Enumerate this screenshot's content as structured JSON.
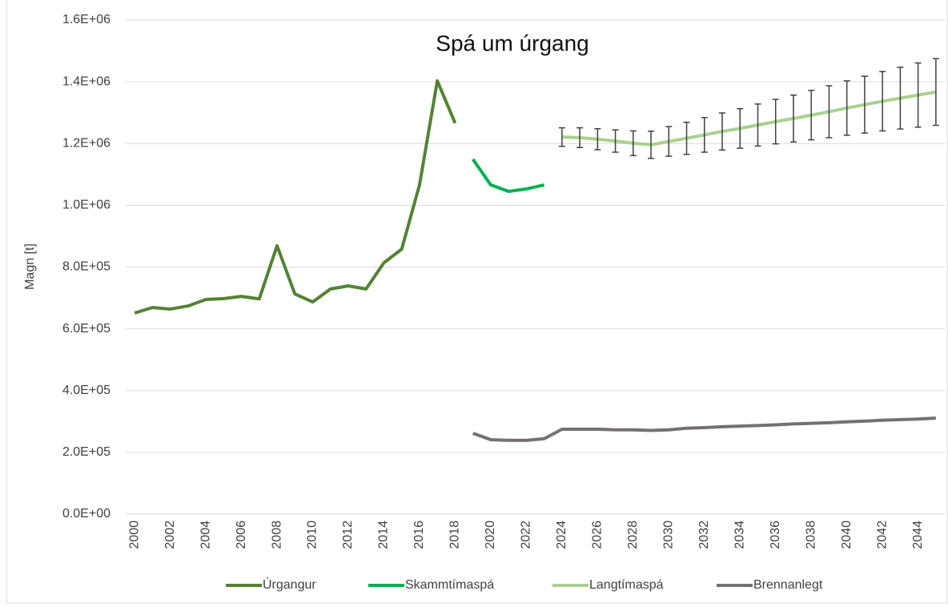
{
  "chart_data": {
    "type": "line",
    "title": "Spá um úrgang",
    "y_label": "Magn [t]",
    "categories": [
      "2000",
      null,
      "2002",
      null,
      "2004",
      null,
      "2006",
      null,
      "2008",
      null,
      "2010",
      null,
      "2012",
      null,
      "2014",
      null,
      "2016",
      null,
      "2018",
      null,
      "2020",
      null,
      "2022",
      null,
      "2024",
      null,
      "2026",
      null,
      "2028",
      null,
      "2030",
      null,
      "2032",
      null,
      "2034",
      null,
      "2036",
      null,
      "2038",
      null,
      "2040",
      null,
      "2042",
      null,
      "2044",
      null
    ],
    "series": [
      {
        "name": "Úrgangur",
        "color": "#548235",
        "values": [
          651000,
          669000,
          664000,
          674000,
          695000,
          698000,
          705000,
          697000,
          869000,
          713000,
          687000,
          729000,
          739000,
          729000,
          814000,
          858000,
          1066000,
          1403000,
          1266000,
          null,
          null,
          null,
          null,
          null,
          null,
          null,
          null,
          null,
          null,
          null,
          null,
          null,
          null,
          null,
          null,
          null,
          null,
          null,
          null,
          null,
          null,
          null,
          null,
          null,
          null,
          null
        ]
      },
      {
        "name": "Skammtímaspá",
        "color": "#00b050",
        "values": [
          null,
          null,
          null,
          null,
          null,
          null,
          null,
          null,
          null,
          null,
          null,
          null,
          null,
          null,
          null,
          null,
          null,
          null,
          null,
          1149000,
          1066000,
          1045000,
          1053000,
          1066000,
          null,
          null,
          null,
          null,
          null,
          null,
          null,
          null,
          null,
          null,
          null,
          null,
          null,
          null,
          null,
          null,
          null,
          null,
          null,
          null,
          null,
          null
        ]
      },
      {
        "name": "Langtímaspá",
        "color": "#a9d18e",
        "values": [
          null,
          null,
          null,
          null,
          null,
          null,
          null,
          null,
          null,
          null,
          null,
          null,
          null,
          null,
          null,
          null,
          null,
          null,
          null,
          null,
          null,
          null,
          null,
          null,
          1221000,
          1219000,
          1214000,
          1208000,
          1201000,
          1196000,
          1207000,
          1217000,
          1228000,
          1239000,
          1249000,
          1260000,
          1271000,
          1281000,
          1292000,
          1303000,
          1315000,
          1326000,
          1337000,
          1347000,
          1357000,
          1367000
        ],
        "errors": [
          null,
          null,
          null,
          null,
          null,
          null,
          null,
          null,
          null,
          null,
          null,
          null,
          null,
          null,
          null,
          null,
          null,
          null,
          null,
          null,
          null,
          null,
          null,
          null,
          30000,
          32000,
          34000,
          36000,
          40000,
          44000,
          48000,
          52000,
          56000,
          60000,
          64000,
          68000,
          72000,
          76000,
          80000,
          84000,
          88000,
          92000,
          96000,
          100000,
          104000,
          108000
        ]
      },
      {
        "name": "Brennanlegt",
        "color": "#767171",
        "values": [
          null,
          null,
          null,
          null,
          null,
          null,
          null,
          null,
          null,
          null,
          null,
          null,
          null,
          null,
          null,
          null,
          null,
          null,
          null,
          262000,
          241000,
          239000,
          239000,
          244000,
          275000,
          275000,
          275000,
          273000,
          273000,
          271000,
          273000,
          278000,
          280000,
          283000,
          285000,
          287000,
          289000,
          292000,
          294000,
          296000,
          299000,
          301000,
          304000,
          306000,
          308000,
          311000
        ]
      }
    ],
    "ylim": [
      0,
      1600000
    ],
    "yticks": [
      {
        "value": 0,
        "label": "0.0E+00"
      },
      {
        "value": 200000,
        "label": "2.0E+05"
      },
      {
        "value": 400000,
        "label": "4.0E+05"
      },
      {
        "value": 600000,
        "label": "6.0E+05"
      },
      {
        "value": 800000,
        "label": "8.0E+05"
      },
      {
        "value": 1000000,
        "label": "1.0E+06"
      },
      {
        "value": 1200000,
        "label": "1.2E+06"
      },
      {
        "value": 1400000,
        "label": "1.4E+06"
      },
      {
        "value": 1600000,
        "label": "1.6E+06"
      }
    ],
    "grid": true,
    "legend": "bottom"
  }
}
